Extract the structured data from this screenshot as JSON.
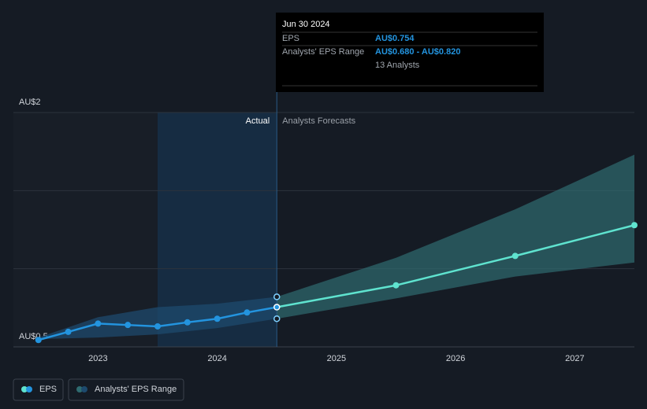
{
  "chart_data": {
    "type": "line",
    "xlim": [
      2022.29,
      2027.5
    ],
    "xticks": [
      2023,
      2024,
      2025,
      2026,
      2027
    ],
    "ylim": [
      0.5,
      2
    ],
    "yticks": [
      {
        "value": 0.5,
        "label": "AU$0.5"
      },
      {
        "value": 2,
        "label": "AU$2"
      }
    ],
    "grid_values": [
      1,
      1.5
    ],
    "divider_labels": [
      "Actual",
      "Analysts Forecasts"
    ],
    "divider_x": 2024.5,
    "series": [
      {
        "name": "EPS",
        "color": "#2394df",
        "x": [
          2022.5,
          2022.75,
          2023,
          2023.25,
          2023.5,
          2023.75,
          2024,
          2024.25,
          2024.5
        ],
        "values": [
          0.544,
          0.596,
          0.649,
          0.64,
          0.631,
          0.657,
          0.68,
          0.72,
          0.754
        ],
        "forecast_color": "#5fe3cf",
        "forecast_x": [
          2024.5,
          2025.5,
          2026.5,
          2027.5
        ],
        "forecast_values": [
          0.754,
          0.894,
          1.082,
          1.279
        ]
      }
    ],
    "range": {
      "name": "Analysts' EPS Range",
      "color": "#2f6b70",
      "x": [
        2022.5,
        2023,
        2023.5,
        2024,
        2024.5,
        2025.5,
        2026.5,
        2027.5
      ],
      "low": [
        0.55,
        0.56,
        0.58,
        0.62,
        0.68,
        0.81,
        0.95,
        1.04
      ],
      "high": [
        0.56,
        0.69,
        0.754,
        0.776,
        0.82,
        1.07,
        1.38,
        1.73
      ]
    },
    "tooltip": {
      "date": "Jun 30 2024",
      "rows": [
        [
          "EPS",
          "AU$0.754"
        ],
        [
          "Analysts' EPS Range",
          "AU$0.680 - AU$0.820"
        ]
      ],
      "note": "13 Analysts"
    }
  }
}
